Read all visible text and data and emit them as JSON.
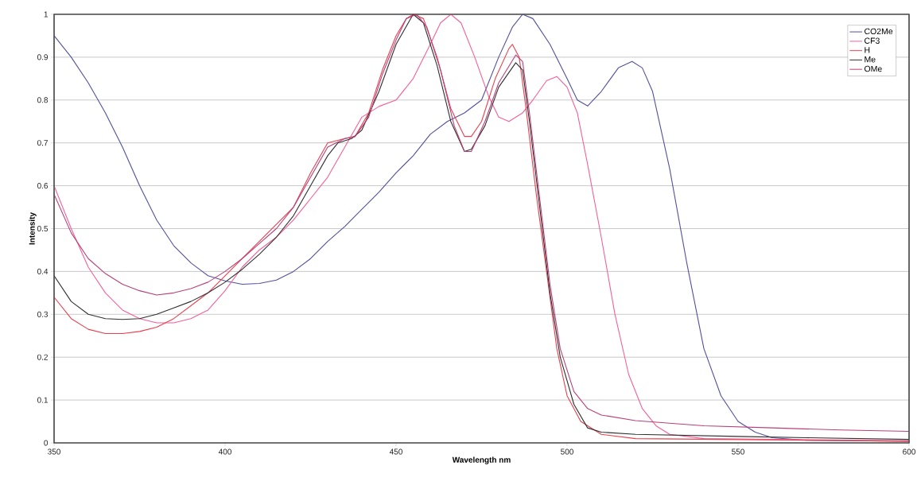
{
  "chart_data": {
    "type": "line",
    "xlabel": "Wavelength nm",
    "ylabel": "Intensity",
    "xlim": [
      350,
      600
    ],
    "xticks": [
      350,
      400,
      450,
      500,
      550,
      600
    ],
    "ylim": [
      0,
      1
    ],
    "yticks": [
      0,
      0.1,
      0.2,
      0.3,
      0.4,
      0.5,
      0.6,
      0.7,
      0.8,
      0.9,
      1
    ],
    "grid": "y",
    "legend": "top right",
    "series": [
      {
        "name": "CO2Me",
        "color": "#52509e",
        "x": [
          350,
          355,
          360,
          365,
          370,
          375,
          380,
          385,
          390,
          395,
          400,
          405,
          410,
          415,
          420,
          425,
          430,
          435,
          440,
          445,
          450,
          455,
          460,
          465,
          470,
          475,
          480,
          484,
          487,
          490,
          495,
          500,
          503,
          506,
          510,
          515,
          519,
          522,
          525,
          530,
          535,
          540,
          545,
          550,
          555,
          560,
          570,
          600
        ],
        "values": [
          0.95,
          0.9,
          0.84,
          0.77,
          0.69,
          0.6,
          0.52,
          0.46,
          0.42,
          0.39,
          0.378,
          0.37,
          0.372,
          0.38,
          0.4,
          0.43,
          0.47,
          0.505,
          0.545,
          0.585,
          0.63,
          0.67,
          0.72,
          0.75,
          0.77,
          0.8,
          0.9,
          0.97,
          1.0,
          0.99,
          0.93,
          0.85,
          0.8,
          0.786,
          0.82,
          0.875,
          0.89,
          0.875,
          0.82,
          0.64,
          0.42,
          0.22,
          0.11,
          0.05,
          0.025,
          0.012,
          0.006,
          0.004
        ]
      },
      {
        "name": "CF3",
        "color": "#f2609a",
        "x": [
          350,
          355,
          360,
          365,
          370,
          375,
          380,
          385,
          390,
          395,
          400,
          405,
          410,
          415,
          420,
          425,
          430,
          435,
          440,
          445,
          450,
          455,
          460,
          463,
          466,
          469,
          473,
          477,
          480,
          483,
          487,
          490,
          494,
          497,
          500,
          503,
          506,
          510,
          514,
          518,
          522,
          526,
          530,
          540,
          600
        ],
        "values": [
          0.6,
          0.5,
          0.41,
          0.35,
          0.31,
          0.29,
          0.28,
          0.28,
          0.29,
          0.31,
          0.355,
          0.41,
          0.45,
          0.48,
          0.52,
          0.57,
          0.62,
          0.69,
          0.76,
          0.785,
          0.8,
          0.85,
          0.93,
          0.98,
          1.0,
          0.98,
          0.9,
          0.81,
          0.76,
          0.75,
          0.77,
          0.8,
          0.845,
          0.855,
          0.83,
          0.77,
          0.65,
          0.48,
          0.3,
          0.16,
          0.08,
          0.04,
          0.02,
          0.01,
          0.005
        ]
      },
      {
        "name": "H",
        "color": "#e8404f",
        "x": [
          350,
          355,
          360,
          365,
          370,
          375,
          380,
          385,
          390,
          395,
          400,
          405,
          410,
          415,
          420,
          425,
          430,
          435,
          438,
          442,
          446,
          450,
          453,
          455,
          458,
          462,
          466,
          470,
          472,
          475,
          479,
          483,
          484,
          486,
          488,
          491,
          494,
          497,
          500,
          504,
          510,
          520,
          600
        ],
        "values": [
          0.34,
          0.29,
          0.265,
          0.255,
          0.255,
          0.26,
          0.27,
          0.29,
          0.32,
          0.35,
          0.39,
          0.43,
          0.47,
          0.51,
          0.55,
          0.63,
          0.7,
          0.71,
          0.715,
          0.77,
          0.87,
          0.95,
          0.99,
          1.0,
          0.99,
          0.9,
          0.78,
          0.715,
          0.715,
          0.75,
          0.85,
          0.92,
          0.93,
          0.9,
          0.78,
          0.58,
          0.4,
          0.22,
          0.11,
          0.05,
          0.02,
          0.01,
          0.004
        ]
      },
      {
        "name": "Me",
        "color": "#303030",
        "x": [
          350,
          355,
          360,
          365,
          370,
          375,
          380,
          385,
          390,
          395,
          400,
          405,
          410,
          415,
          420,
          425,
          430,
          433,
          437,
          440,
          445,
          450,
          455,
          458,
          462,
          466,
          470,
          472,
          476,
          480,
          485,
          487,
          489,
          492,
          495,
          498,
          502,
          506,
          510,
          520,
          550,
          570,
          600
        ],
        "values": [
          0.39,
          0.33,
          0.3,
          0.29,
          0.288,
          0.29,
          0.3,
          0.315,
          0.33,
          0.35,
          0.375,
          0.405,
          0.44,
          0.48,
          0.53,
          0.6,
          0.67,
          0.7,
          0.71,
          0.73,
          0.82,
          0.93,
          1.0,
          0.98,
          0.88,
          0.75,
          0.68,
          0.685,
          0.74,
          0.83,
          0.887,
          0.87,
          0.75,
          0.55,
          0.35,
          0.2,
          0.09,
          0.035,
          0.025,
          0.02,
          0.015,
          0.012,
          0.008
        ]
      },
      {
        "name": "OMe",
        "color": "#b8407a",
        "x": [
          350,
          355,
          360,
          365,
          370,
          375,
          380,
          385,
          390,
          395,
          400,
          405,
          410,
          415,
          420,
          425,
          430,
          435,
          438,
          442,
          446,
          450,
          453,
          456,
          459,
          463,
          467,
          470,
          472,
          476,
          480,
          485,
          487,
          489,
          492,
          495,
          498,
          502,
          506,
          510,
          520,
          540,
          560,
          580,
          600
        ],
        "values": [
          0.58,
          0.49,
          0.43,
          0.395,
          0.37,
          0.355,
          0.345,
          0.35,
          0.36,
          0.375,
          0.4,
          0.43,
          0.465,
          0.5,
          0.55,
          0.62,
          0.69,
          0.71,
          0.715,
          0.76,
          0.86,
          0.94,
          0.99,
          1.0,
          0.97,
          0.87,
          0.74,
          0.68,
          0.68,
          0.75,
          0.84,
          0.905,
          0.89,
          0.77,
          0.57,
          0.37,
          0.22,
          0.12,
          0.08,
          0.065,
          0.052,
          0.04,
          0.035,
          0.03,
          0.027
        ]
      }
    ]
  }
}
